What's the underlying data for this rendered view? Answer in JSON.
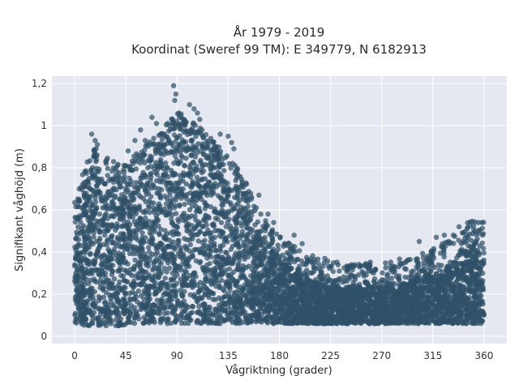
{
  "chart_data": {
    "type": "scatter",
    "title_line1": "År 1979 - 2019",
    "title_line2": "Koordinat (Sweref 99 TM): E 349779, N 6182913",
    "xlabel": "Vågriktning (grader)",
    "ylabel": "Signifikant våghöjd (m)",
    "xlim": [
      -20,
      380
    ],
    "ylim": [
      -0.035,
      1.235
    ],
    "x_ticks": [
      0,
      45,
      90,
      135,
      180,
      225,
      270,
      315,
      360
    ],
    "x_tick_labels": [
      "0",
      "45",
      "90",
      "135",
      "180",
      "225",
      "270",
      "315",
      "360"
    ],
    "y_ticks": [
      0,
      0.2,
      0.4,
      0.6,
      0.8,
      1.0,
      1.2
    ],
    "y_tick_labels": [
      "0",
      "0,2",
      "0,4",
      "0,6",
      "0,8",
      "1",
      "1,2"
    ],
    "grid": true,
    "plot_background": "#e5e8f0",
    "marker_color": "#2f5168",
    "marker_opacity": 0.72,
    "envelope": {
      "x": [
        0,
        10,
        20,
        30,
        45,
        60,
        75,
        90,
        100,
        110,
        120,
        135,
        150,
        165,
        180,
        200,
        225,
        250,
        270,
        290,
        315,
        330,
        345,
        355,
        360
      ],
      "upper": [
        0.55,
        0.7,
        0.8,
        0.72,
        0.7,
        0.78,
        0.85,
        0.95,
        0.92,
        0.88,
        0.82,
        0.75,
        0.62,
        0.45,
        0.36,
        0.28,
        0.24,
        0.23,
        0.24,
        0.25,
        0.3,
        0.34,
        0.42,
        0.45,
        0.42
      ],
      "lower": [
        0.06,
        0.05,
        0.05,
        0.05,
        0.05,
        0.06,
        0.06,
        0.06,
        0.06,
        0.06,
        0.06,
        0.06,
        0.06,
        0.06,
        0.06,
        0.06,
        0.06,
        0.06,
        0.06,
        0.06,
        0.06,
        0.06,
        0.06,
        0.06,
        0.06
      ]
    },
    "outliers": [
      {
        "x": 87,
        "y": 1.19
      },
      {
        "x": 89,
        "y": 1.15
      },
      {
        "x": 88,
        "y": 1.12
      },
      {
        "x": 92,
        "y": 1.04
      },
      {
        "x": 95,
        "y": 1.03
      },
      {
        "x": 97,
        "y": 1.0
      },
      {
        "x": 101,
        "y": 1.1
      },
      {
        "x": 105,
        "y": 1.08
      },
      {
        "x": 108,
        "y": 1.06
      },
      {
        "x": 110,
        "y": 1.03
      },
      {
        "x": 112,
        "y": 0.98
      },
      {
        "x": 128,
        "y": 0.96
      },
      {
        "x": 135,
        "y": 0.95
      },
      {
        "x": 138,
        "y": 0.92
      },
      {
        "x": 140,
        "y": 0.89
      },
      {
        "x": 68,
        "y": 1.04
      },
      {
        "x": 72,
        "y": 1.01
      },
      {
        "x": 62,
        "y": 0.93
      },
      {
        "x": 15,
        "y": 0.96
      },
      {
        "x": 18,
        "y": 0.93
      },
      {
        "x": 20,
        "y": 0.91
      },
      {
        "x": 53,
        "y": 0.93
      },
      {
        "x": 47,
        "y": 0.88
      },
      {
        "x": 58,
        "y": 0.98
      },
      {
        "x": 162,
        "y": 0.67
      },
      {
        "x": 170,
        "y": 0.58
      },
      {
        "x": 175,
        "y": 0.54
      },
      {
        "x": 193,
        "y": 0.48
      },
      {
        "x": 200,
        "y": 0.44
      },
      {
        "x": 220,
        "y": 0.37
      },
      {
        "x": 240,
        "y": 0.33
      },
      {
        "x": 254,
        "y": 0.3
      },
      {
        "x": 263,
        "y": 0.26
      },
      {
        "x": 285,
        "y": 0.33
      },
      {
        "x": 302,
        "y": 0.32
      },
      {
        "x": 318,
        "y": 0.47
      },
      {
        "x": 325,
        "y": 0.48
      },
      {
        "x": 333,
        "y": 0.48
      },
      {
        "x": 338,
        "y": 0.52
      },
      {
        "x": 345,
        "y": 0.51
      },
      {
        "x": 355,
        "y": 0.54
      },
      {
        "x": 358,
        "y": 0.54
      },
      {
        "x": 303,
        "y": 0.45
      },
      {
        "x": 310,
        "y": 0.38
      }
    ]
  }
}
